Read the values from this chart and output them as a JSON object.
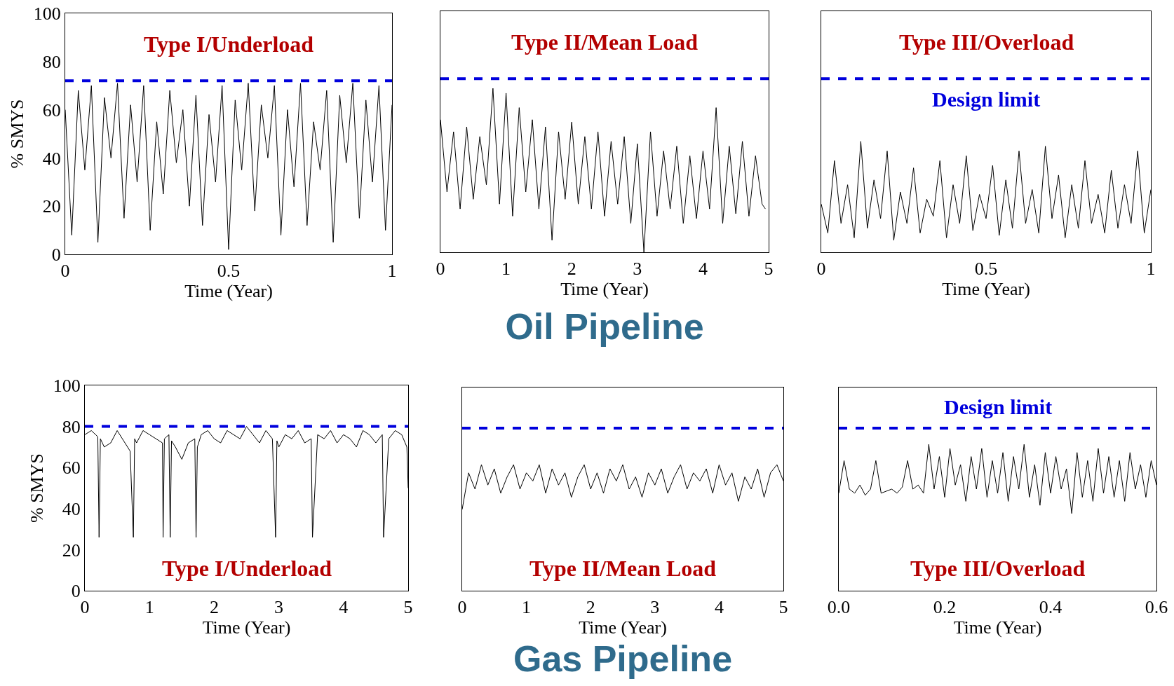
{
  "chart_data": [
    {
      "type": "line",
      "title": "Type I/Underload",
      "xlabel": "Time (Year)",
      "ylabel": "% SMYS",
      "xlim": [
        0,
        1
      ],
      "xticks": [
        0,
        0.5,
        1
      ],
      "ylim": [
        0,
        100
      ],
      "yticks": [
        0,
        20,
        40,
        60,
        80,
        100
      ],
      "grid": false,
      "x": [
        0,
        0.02,
        0.04,
        0.06,
        0.08,
        0.1,
        0.12,
        0.14,
        0.16,
        0.18,
        0.2,
        0.22,
        0.24,
        0.26,
        0.28,
        0.3,
        0.32,
        0.34,
        0.36,
        0.38,
        0.4,
        0.42,
        0.44,
        0.46,
        0.48,
        0.5,
        0.52,
        0.54,
        0.56,
        0.58,
        0.6,
        0.62,
        0.64,
        0.66,
        0.68,
        0.7,
        0.72,
        0.74,
        0.76,
        0.78,
        0.8,
        0.82,
        0.84,
        0.86,
        0.88,
        0.9,
        0.92,
        0.94,
        0.96,
        0.98,
        1
      ],
      "series": [
        {
          "color": "#000000",
          "values": [
            60,
            8,
            68,
            35,
            70,
            5,
            65,
            40,
            71,
            15,
            62,
            30,
            70,
            10,
            55,
            25,
            68,
            38,
            60,
            20,
            66,
            12,
            58,
            30,
            70,
            2,
            64,
            35,
            71,
            18,
            62,
            40,
            70,
            8,
            60,
            28,
            71,
            12,
            55,
            35,
            68,
            5,
            66,
            38,
            71,
            15,
            64,
            30,
            70,
            10,
            62
          ]
        }
      ],
      "ref_lines": [
        {
          "axis": "y",
          "value": 72,
          "color": "#0000dd",
          "line_style": "dashed"
        }
      ]
    },
    {
      "type": "line",
      "title": "Type II/Mean Load",
      "xlabel": "Time (Year)",
      "xlim": [
        0,
        5
      ],
      "xticks": [
        0,
        1,
        2,
        3,
        4,
        5
      ],
      "ylim": [
        0,
        100
      ],
      "yticks": [
        0,
        20,
        40,
        60,
        80,
        100
      ],
      "tick_labels": "x",
      "grid": false,
      "x": [
        0,
        0.1,
        0.2,
        0.3,
        0.4,
        0.5,
        0.6,
        0.7,
        0.8,
        0.9,
        1,
        1.1,
        1.2,
        1.3,
        1.4,
        1.5,
        1.6,
        1.7,
        1.8,
        1.9,
        2,
        2.1,
        2.2,
        2.3,
        2.4,
        2.5,
        2.6,
        2.7,
        2.8,
        2.9,
        3,
        3.1,
        3.2,
        3.3,
        3.4,
        3.5,
        3.6,
        3.7,
        3.8,
        3.9,
        4,
        4.1,
        4.2,
        4.3,
        4.4,
        4.5,
        4.6,
        4.7,
        4.8,
        4.9,
        4.95
      ],
      "series": [
        {
          "color": "#000000",
          "values": [
            55,
            25,
            50,
            18,
            52,
            22,
            48,
            28,
            68,
            20,
            66,
            15,
            60,
            25,
            55,
            18,
            52,
            5,
            50,
            22,
            54,
            20,
            48,
            18,
            50,
            15,
            46,
            20,
            48,
            12,
            45,
            0,
            50,
            15,
            42,
            18,
            44,
            12,
            40,
            14,
            42,
            18,
            60,
            12,
            44,
            16,
            46,
            15,
            40,
            20,
            18
          ]
        }
      ],
      "ref_lines": [
        {
          "axis": "y",
          "value": 72,
          "color": "#0000dd",
          "line_style": "dashed"
        }
      ],
      "annotations": [
        "Oil Pipeline"
      ]
    },
    {
      "type": "line",
      "title": "Type III/Overload",
      "xlabel": "Time (Year)",
      "xlim": [
        0,
        1
      ],
      "xticks": [
        0,
        0.5,
        1
      ],
      "ylim": [
        0,
        100
      ],
      "yticks": [
        0,
        20,
        40,
        60,
        80,
        100
      ],
      "tick_labels": "x",
      "grid": false,
      "x": [
        0,
        0.02,
        0.04,
        0.06,
        0.08,
        0.1,
        0.12,
        0.14,
        0.16,
        0.18,
        0.2,
        0.22,
        0.24,
        0.26,
        0.28,
        0.3,
        0.32,
        0.34,
        0.36,
        0.38,
        0.4,
        0.42,
        0.44,
        0.46,
        0.48,
        0.5,
        0.52,
        0.54,
        0.56,
        0.58,
        0.6,
        0.62,
        0.64,
        0.66,
        0.68,
        0.7,
        0.72,
        0.74,
        0.76,
        0.78,
        0.8,
        0.82,
        0.84,
        0.86,
        0.88,
        0.9,
        0.92,
        0.94,
        0.96,
        0.98,
        1
      ],
      "series": [
        {
          "color": "#000000",
          "values": [
            20,
            8,
            38,
            12,
            28,
            6,
            46,
            10,
            30,
            14,
            42,
            5,
            25,
            12,
            35,
            8,
            22,
            15,
            38,
            6,
            28,
            12,
            40,
            9,
            24,
            14,
            36,
            7,
            30,
            10,
            42,
            12,
            26,
            8,
            44,
            14,
            32,
            6,
            28,
            10,
            38,
            12,
            24,
            8,
            34,
            10,
            28,
            12,
            42,
            8,
            26
          ]
        }
      ],
      "ref_lines": [
        {
          "axis": "y",
          "value": 72,
          "label": "Design limit",
          "color": "#0000dd",
          "line_style": "dashed"
        }
      ]
    },
    {
      "type": "line",
      "title": "Type I/Underload",
      "xlabel": "Time (Year)",
      "ylabel": "% SMYS",
      "xlim": [
        0,
        5
      ],
      "xticks": [
        0,
        1,
        2,
        3,
        4,
        5
      ],
      "ylim": [
        0,
        100
      ],
      "yticks": [
        0,
        20,
        40,
        60,
        80,
        100
      ],
      "grid": false,
      "x": [
        0,
        0.1,
        0.2,
        0.22,
        0.24,
        0.3,
        0.4,
        0.5,
        0.6,
        0.7,
        0.75,
        0.77,
        0.8,
        0.9,
        1.0,
        1.1,
        1.2,
        1.21,
        1.23,
        1.3,
        1.32,
        1.34,
        1.4,
        1.5,
        1.6,
        1.7,
        1.72,
        1.74,
        1.8,
        1.9,
        2.0,
        2.1,
        2.2,
        2.3,
        2.4,
        2.5,
        2.6,
        2.7,
        2.8,
        2.9,
        2.95,
        2.97,
        3.0,
        3.1,
        3.2,
        3.3,
        3.4,
        3.5,
        3.52,
        3.6,
        3.7,
        3.8,
        3.9,
        4.0,
        4.1,
        4.2,
        4.3,
        4.4,
        4.5,
        4.6,
        4.62,
        4.7,
        4.8,
        4.9,
        4.98,
        5.0
      ],
      "series": [
        {
          "color": "#000000",
          "values": [
            76,
            78,
            75,
            26,
            74,
            70,
            72,
            78,
            73,
            68,
            26,
            74,
            72,
            78,
            76,
            74,
            72,
            26,
            74,
            76,
            26,
            73,
            70,
            64,
            72,
            74,
            26,
            70,
            76,
            78,
            74,
            72,
            78,
            76,
            74,
            80,
            76,
            72,
            78,
            74,
            26,
            73,
            70,
            76,
            74,
            78,
            72,
            74,
            26,
            76,
            74,
            78,
            72,
            76,
            74,
            70,
            78,
            76,
            72,
            76,
            26,
            74,
            78,
            76,
            70,
            50
          ]
        }
      ],
      "ref_lines": [
        {
          "axis": "y",
          "value": 80,
          "color": "#0000dd",
          "line_style": "dashed"
        }
      ]
    },
    {
      "type": "line",
      "title": "Type II/Mean Load",
      "xlabel": "Time (Year)",
      "xlim": [
        0,
        5
      ],
      "xticks": [
        0,
        1,
        2,
        3,
        4,
        5
      ],
      "ylim": [
        0,
        100
      ],
      "yticks": [
        0,
        20,
        40,
        60,
        80,
        100
      ],
      "tick_labels": "x",
      "grid": false,
      "x": [
        0,
        0.1,
        0.2,
        0.3,
        0.4,
        0.5,
        0.6,
        0.7,
        0.8,
        0.9,
        1,
        1.1,
        1.2,
        1.3,
        1.4,
        1.5,
        1.6,
        1.7,
        1.8,
        1.9,
        2,
        2.1,
        2.2,
        2.3,
        2.4,
        2.5,
        2.6,
        2.7,
        2.8,
        2.9,
        3,
        3.1,
        3.2,
        3.3,
        3.4,
        3.5,
        3.6,
        3.7,
        3.8,
        3.9,
        4,
        4.1,
        4.2,
        4.3,
        4.4,
        4.5,
        4.6,
        4.7,
        4.8,
        4.9,
        5
      ],
      "series": [
        {
          "color": "#000000",
          "values": [
            40,
            58,
            50,
            62,
            52,
            60,
            48,
            56,
            62,
            50,
            58,
            54,
            62,
            48,
            60,
            52,
            58,
            46,
            56,
            62,
            50,
            58,
            48,
            60,
            54,
            62,
            50,
            56,
            46,
            58,
            52,
            60,
            48,
            56,
            62,
            50,
            58,
            54,
            60,
            48,
            62,
            52,
            58,
            44,
            56,
            50,
            60,
            46,
            58,
            62,
            54
          ]
        }
      ],
      "ref_lines": [
        {
          "axis": "y",
          "value": 80,
          "color": "#0000dd",
          "line_style": "dashed"
        }
      ],
      "annotations": [
        "Gas Pipeline"
      ]
    },
    {
      "type": "line",
      "title": "Type III/Overload",
      "xlabel": "Time (Year)",
      "xlim": [
        0,
        0.6
      ],
      "xticks": [
        {
          "value": 0,
          "label": "0.0"
        },
        {
          "value": 0.2,
          "label": "0.2"
        },
        {
          "value": 0.4,
          "label": "0.4"
        },
        {
          "value": 0.6,
          "label": "0.6"
        }
      ],
      "ylim": [
        0,
        100
      ],
      "yticks": [
        0,
        20,
        40,
        60,
        80,
        100
      ],
      "tick_labels": "x",
      "grid": false,
      "x": [
        0,
        0.01,
        0.02,
        0.03,
        0.04,
        0.05,
        0.06,
        0.07,
        0.08,
        0.09,
        0.1,
        0.11,
        0.12,
        0.13,
        0.14,
        0.15,
        0.16,
        0.17,
        0.18,
        0.19,
        0.2,
        0.21,
        0.22,
        0.23,
        0.24,
        0.25,
        0.26,
        0.27,
        0.28,
        0.29,
        0.3,
        0.31,
        0.32,
        0.33,
        0.34,
        0.35,
        0.36,
        0.37,
        0.38,
        0.39,
        0.4,
        0.41,
        0.42,
        0.43,
        0.44,
        0.45,
        0.46,
        0.47,
        0.48,
        0.49,
        0.5,
        0.51,
        0.52,
        0.53,
        0.54,
        0.55,
        0.56,
        0.57,
        0.58,
        0.59,
        0.6
      ],
      "series": [
        {
          "color": "#000000",
          "values": [
            48,
            64,
            50,
            48,
            52,
            47,
            50,
            64,
            48,
            49,
            50,
            48,
            51,
            64,
            50,
            52,
            48,
            72,
            50,
            66,
            46,
            70,
            52,
            62,
            44,
            66,
            50,
            70,
            46,
            64,
            48,
            68,
            44,
            66,
            50,
            72,
            46,
            62,
            42,
            68,
            48,
            66,
            50,
            60,
            38,
            68,
            46,
            64,
            44,
            70,
            48,
            66,
            46,
            64,
            44,
            68,
            50,
            62,
            46,
            64,
            52
          ]
        }
      ],
      "ref_lines": [
        {
          "axis": "y",
          "value": 80,
          "label": "Design limit",
          "color": "#0000dd",
          "line_style": "dashed"
        }
      ]
    }
  ]
}
